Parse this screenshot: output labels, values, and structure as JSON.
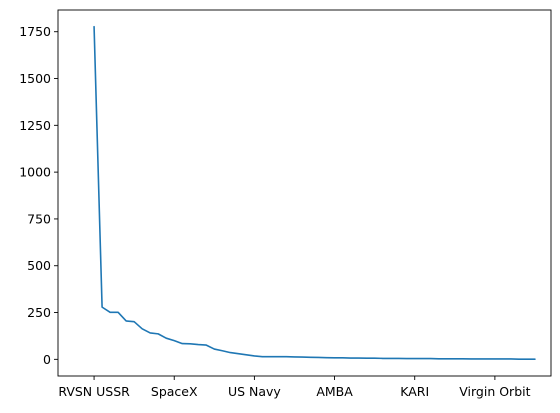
{
  "chart_data": {
    "type": "line",
    "title": "",
    "xlabel": "",
    "ylabel": "",
    "grid": false,
    "x_tick_labels": [
      "RVSN USSR",
      "SpaceX",
      "US Navy",
      "AMBA",
      "KARI",
      "Virgin Orbit"
    ],
    "x_tick_positions": [
      0,
      10,
      20,
      30,
      40,
      50
    ],
    "xlim": [
      -4.5,
      57
    ],
    "ylim": [
      -89,
      1866
    ],
    "yticks": [
      0,
      250,
      500,
      750,
      1000,
      1250,
      1500,
      1750
    ],
    "series": [
      {
        "color": "#1f77b4",
        "x": [
          0,
          1,
          2,
          3,
          4,
          5,
          6,
          7,
          8,
          9,
          10,
          11,
          12,
          13,
          14,
          15,
          16,
          17,
          18,
          19,
          20,
          21,
          22,
          23,
          24,
          25,
          26,
          27,
          28,
          29,
          30,
          31,
          32,
          33,
          34,
          35,
          36,
          37,
          38,
          39,
          40,
          41,
          42,
          43,
          44,
          45,
          46,
          47,
          48,
          49,
          50,
          51,
          52,
          53,
          54,
          55
        ],
        "values": [
          1777,
          279,
          251,
          251,
          205,
          201,
          163,
          141,
          136,
          113,
          100,
          84,
          83,
          79,
          76,
          55,
          46,
          36,
          30,
          24,
          18,
          14,
          14,
          14,
          14,
          13,
          12,
          11,
          10,
          9,
          8,
          8,
          7,
          7,
          6,
          6,
          5,
          5,
          5,
          4,
          4,
          4,
          4,
          3,
          3,
          3,
          3,
          2,
          2,
          2,
          2,
          2,
          2,
          1,
          1,
          1
        ]
      }
    ]
  }
}
